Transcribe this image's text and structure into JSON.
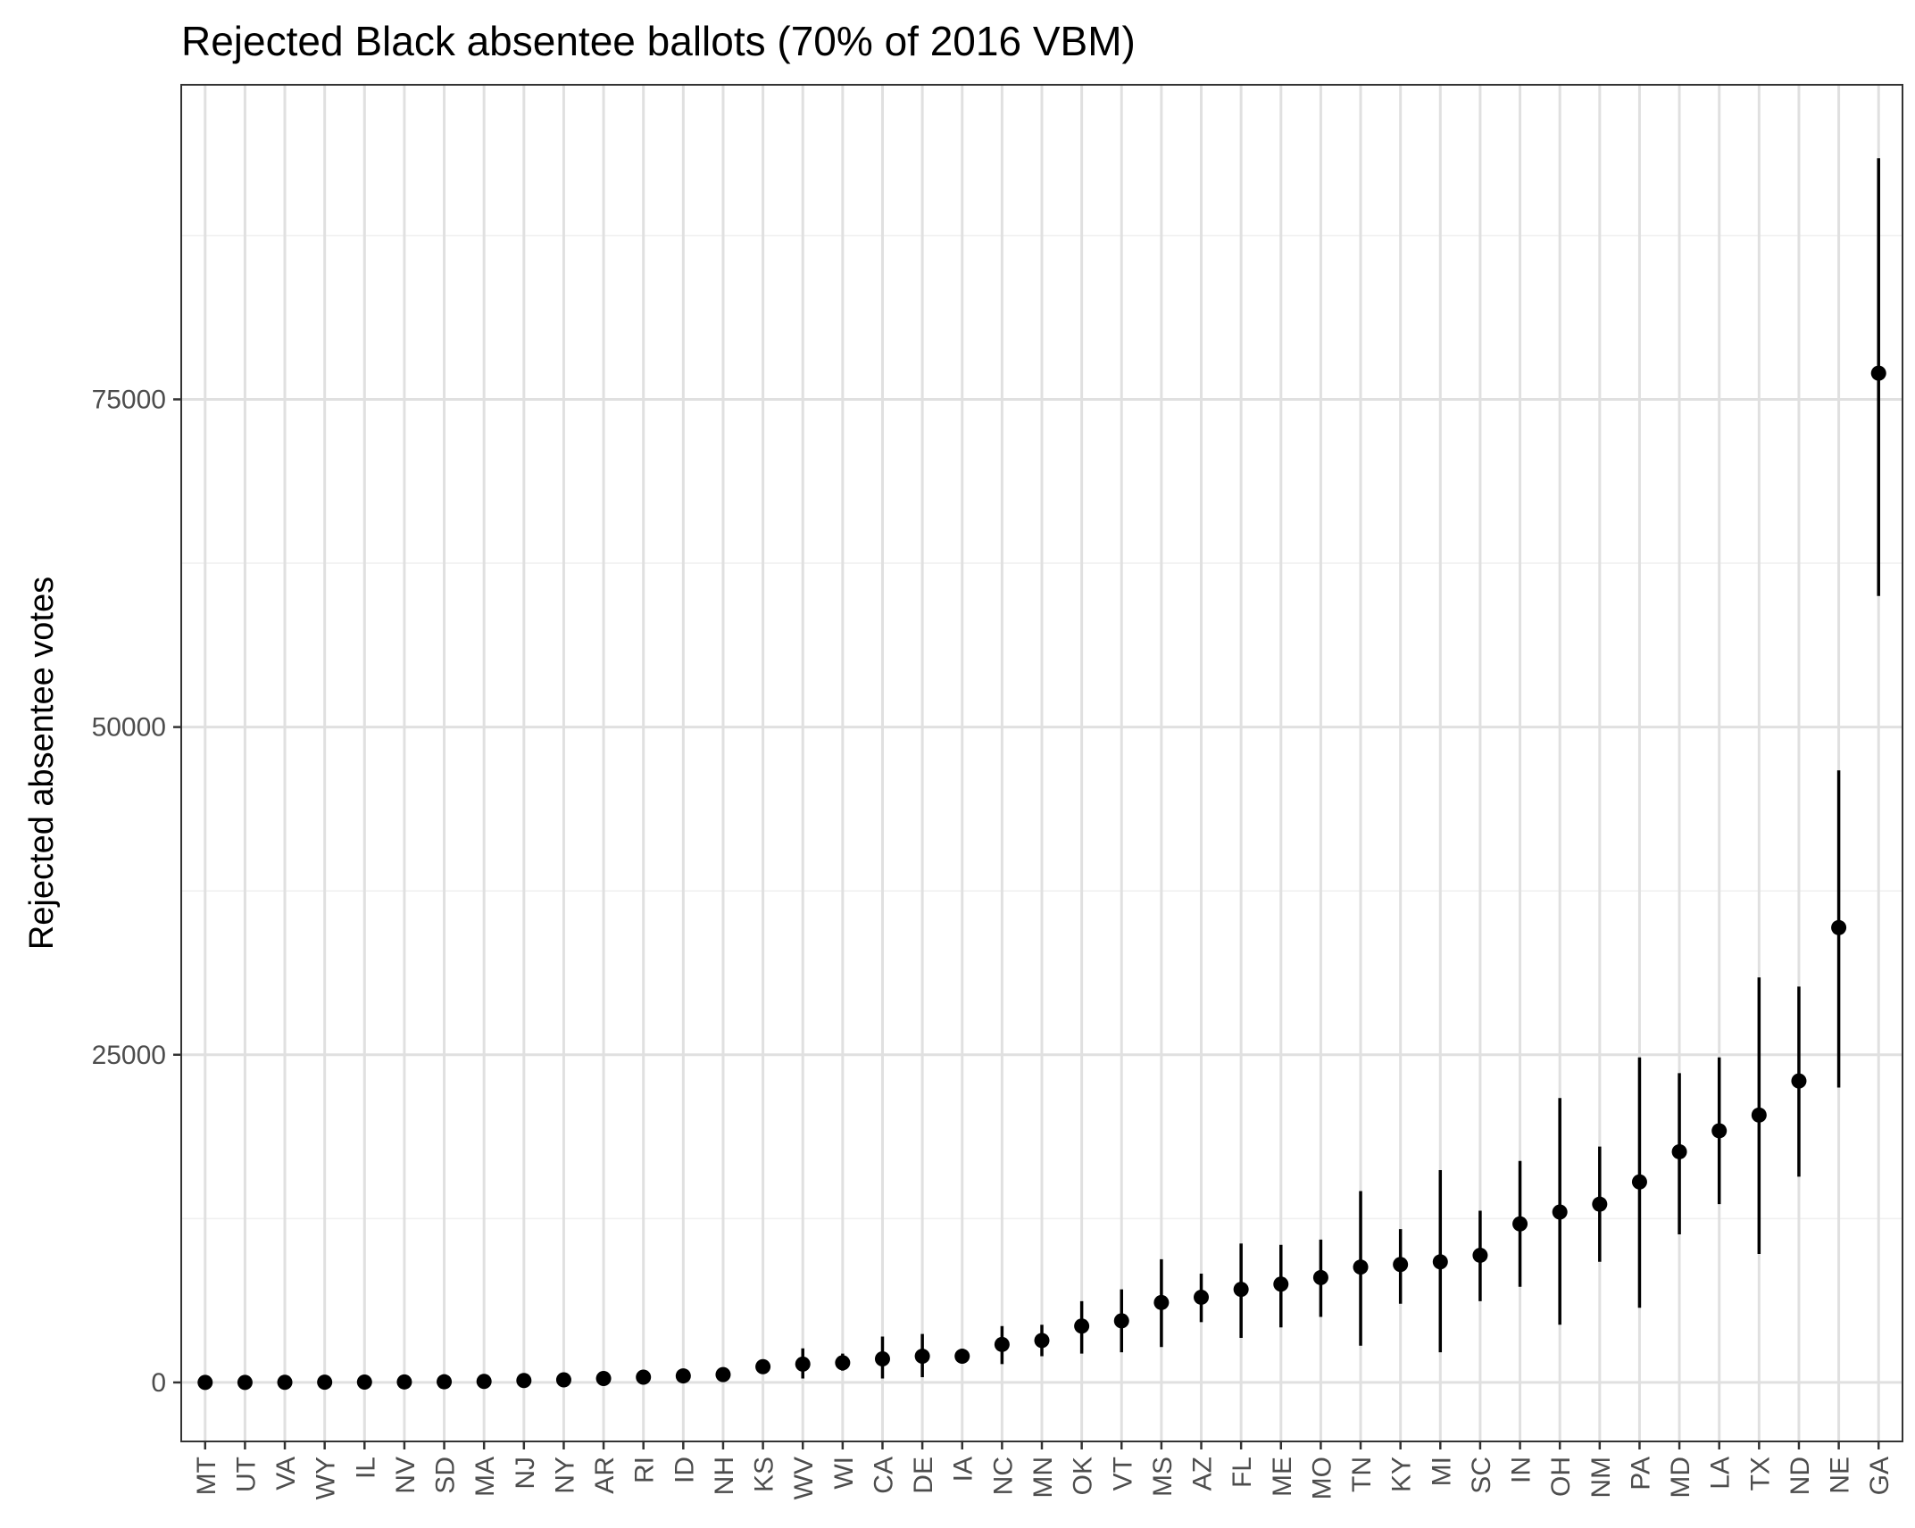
{
  "chart_data": {
    "type": "scatter",
    "title": "Rejected Black absentee ballots (70% of 2016 VBM)",
    "xlabel": "",
    "ylabel": "Rejected absentee votes",
    "ylim": [
      -4500,
      99000
    ],
    "y_ticks": [
      0,
      25000,
      50000,
      75000
    ],
    "y_tick_labels": [
      "0",
      "25000",
      "50000",
      "75000"
    ],
    "grid": true,
    "legend": "none",
    "error_bars": true,
    "categories": [
      "MT",
      "UT",
      "VA",
      "WY",
      "IL",
      "NV",
      "SD",
      "MA",
      "NJ",
      "NY",
      "AR",
      "RI",
      "ID",
      "NH",
      "KS",
      "WV",
      "WI",
      "CA",
      "DE",
      "IA",
      "NC",
      "MN",
      "OK",
      "VT",
      "MS",
      "AZ",
      "FL",
      "ME",
      "MO",
      "TN",
      "KY",
      "MI",
      "SC",
      "IN",
      "OH",
      "NM",
      "PA",
      "MD",
      "LA",
      "TX",
      "ND",
      "NE",
      "GA"
    ],
    "series": [
      {
        "values": [
          0,
          0,
          10,
          20,
          30,
          40,
          50,
          80,
          150,
          200,
          300,
          400,
          500,
          600,
          1200,
          1400,
          1500,
          1800,
          2000,
          2000,
          2900,
          3200,
          4300,
          4700,
          6100,
          6500,
          7100,
          7500,
          8000,
          8800,
          9000,
          9200,
          9700,
          12100,
          13000,
          13600,
          15300,
          17600,
          19200,
          20400,
          23000,
          34700,
          77000
        ],
        "lower": [
          -100,
          -100,
          -100,
          -100,
          -100,
          -100,
          -100,
          -100,
          0,
          0,
          50,
          100,
          200,
          300,
          800,
          300,
          900,
          300,
          400,
          1500,
          1400,
          2000,
          2200,
          2300,
          2700,
          4600,
          3400,
          4200,
          5000,
          2800,
          6000,
          2300,
          6200,
          7300,
          4400,
          9200,
          5700,
          11300,
          13600,
          9800,
          15700,
          22500,
          60000
        ],
        "upper": [
          100,
          100,
          150,
          150,
          150,
          200,
          200,
          250,
          300,
          400,
          550,
          700,
          800,
          900,
          1600,
          2600,
          2200,
          3500,
          3700,
          2500,
          4300,
          4400,
          6200,
          7100,
          9400,
          8300,
          10600,
          10500,
          10900,
          14600,
          11700,
          16200,
          13100,
          16900,
          21700,
          18000,
          24800,
          23600,
          24800,
          30900,
          30200,
          46700,
          93400
        ]
      }
    ]
  },
  "style": {
    "point_color": "#000000",
    "errorbar_color": "#000000",
    "grid_major_color": "#e0e0e0",
    "grid_minor_color": "#efefef",
    "panel_border_color": "#333333",
    "tick_label_color": "#4d4d4d"
  }
}
